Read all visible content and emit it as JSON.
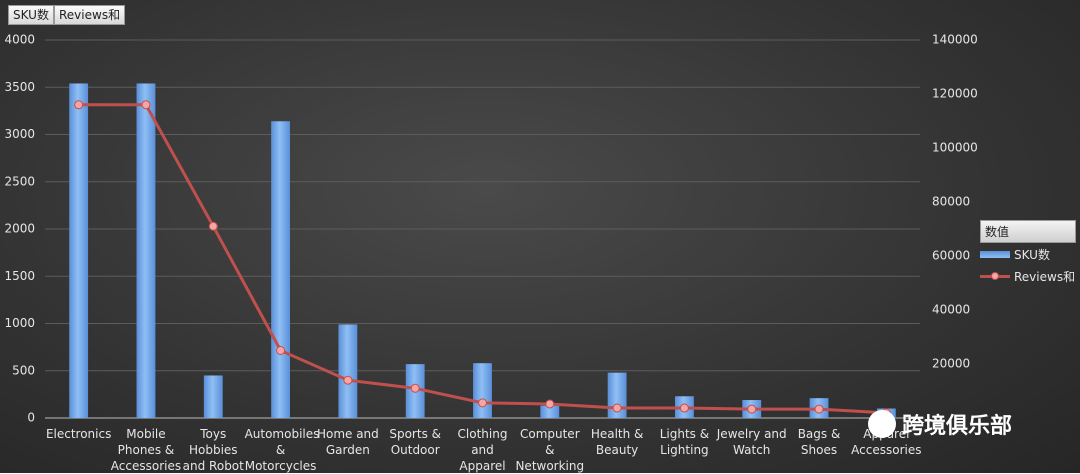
{
  "chart_data": {
    "type": "bar_line",
    "buttons": [
      "SKU数",
      "Reviews和"
    ],
    "legend_title": "数值",
    "watermark": "跨境俱乐部",
    "categories": [
      "Electronics",
      "Mobile Phones & Accessories",
      "Toys Hobbies and Robot",
      "Automobiles & Motorcycles",
      "Home and Garden",
      "Sports & Outdoor",
      "Clothing and Apparel",
      "Computer & Networking",
      "Health & Beauty",
      "Lights & Lighting",
      "Jewelry and Watch",
      "Bags & Shoes",
      "Apparel Accessories"
    ],
    "series": [
      {
        "name": "SKU数",
        "type": "bar",
        "color": "#8fbff5",
        "values": [
          3540,
          3540,
          450,
          3140,
          990,
          570,
          580,
          130,
          480,
          230,
          190,
          210,
          100
        ]
      },
      {
        "name": "Reviews和",
        "type": "line",
        "axis": "y2",
        "color": "#c0504d",
        "marker_color": "#f4a6a6",
        "values": [
          116000,
          116000,
          71000,
          25000,
          14000,
          11000,
          5600,
          5200,
          3700,
          3700,
          3300,
          3300,
          1900
        ]
      }
    ],
    "ylim": [
      0,
      4000
    ],
    "yticks": [
      0,
      500,
      1000,
      1500,
      2000,
      2500,
      3000,
      3500,
      4000
    ],
    "y2lim": [
      0,
      140000
    ],
    "y2ticks": [
      20000,
      40000,
      60000,
      80000,
      100000,
      120000,
      140000
    ],
    "grid": true
  }
}
